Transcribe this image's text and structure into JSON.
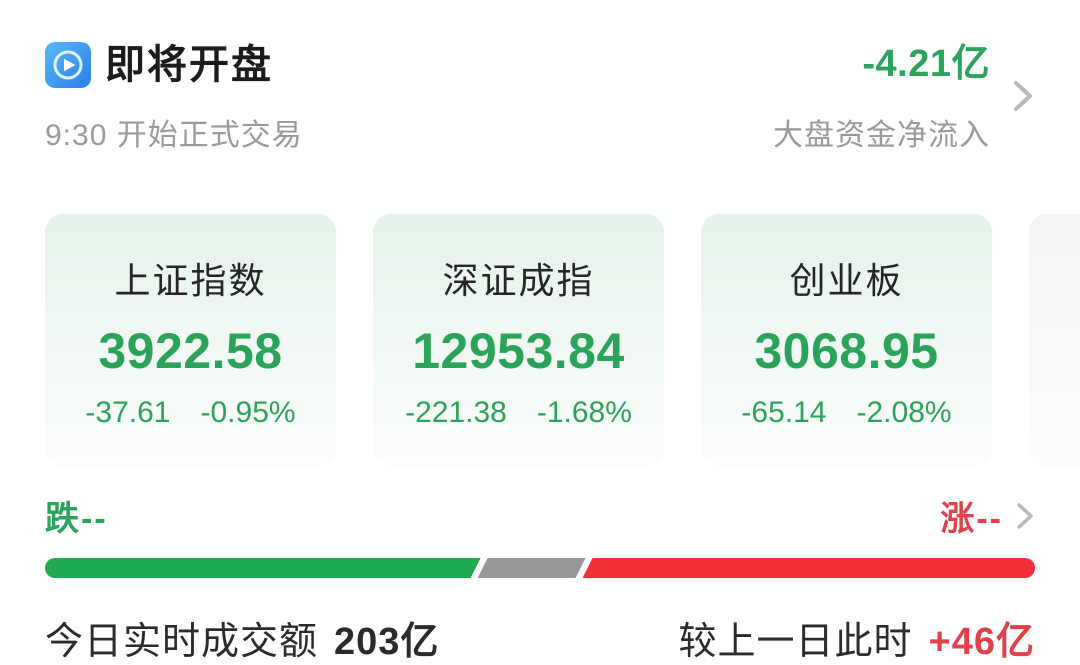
{
  "header": {
    "title": "即将开盘",
    "subtitle": "9:30 开始正式交易",
    "net_inflow": {
      "value": "-4.21亿",
      "label": "大盘资金净流入"
    }
  },
  "index_cards": [
    {
      "name": "上证指数",
      "value": "3922.58",
      "change": "-37.61",
      "change_pct": "-0.95%"
    },
    {
      "name": "深证成指",
      "value": "12953.84",
      "change": "-221.38",
      "change_pct": "-1.68%"
    },
    {
      "name": "创业板",
      "value": "3068.95",
      "change": "-65.14",
      "change_pct": "-2.08%"
    }
  ],
  "market_breadth": {
    "down_label": "跌--",
    "up_label": "涨--",
    "bar": {
      "down_pct": 44,
      "flat_pct": 10.6,
      "up_pct": 45.4
    }
  },
  "turnover": {
    "today_label": "今日实时成交额",
    "today_value": "203亿",
    "prev_label": "较上一日此时",
    "prev_diff": "+46亿"
  },
  "icons": {
    "header_icon": "play-icon",
    "nav_icon": "chevron-right-icon"
  },
  "colors": {
    "text_green": "#2ba35b",
    "text_red": "#e2414c",
    "bar_green": "#1faa50",
    "bar_gray": "#98989b",
    "bar_red": "#f23038",
    "icon_blue_top": "#5abaf7",
    "icon_blue_bottom": "#2a7ee8",
    "card_bg_top": "#e3f2e9",
    "subtitle_gray": "#9a9a9a"
  }
}
